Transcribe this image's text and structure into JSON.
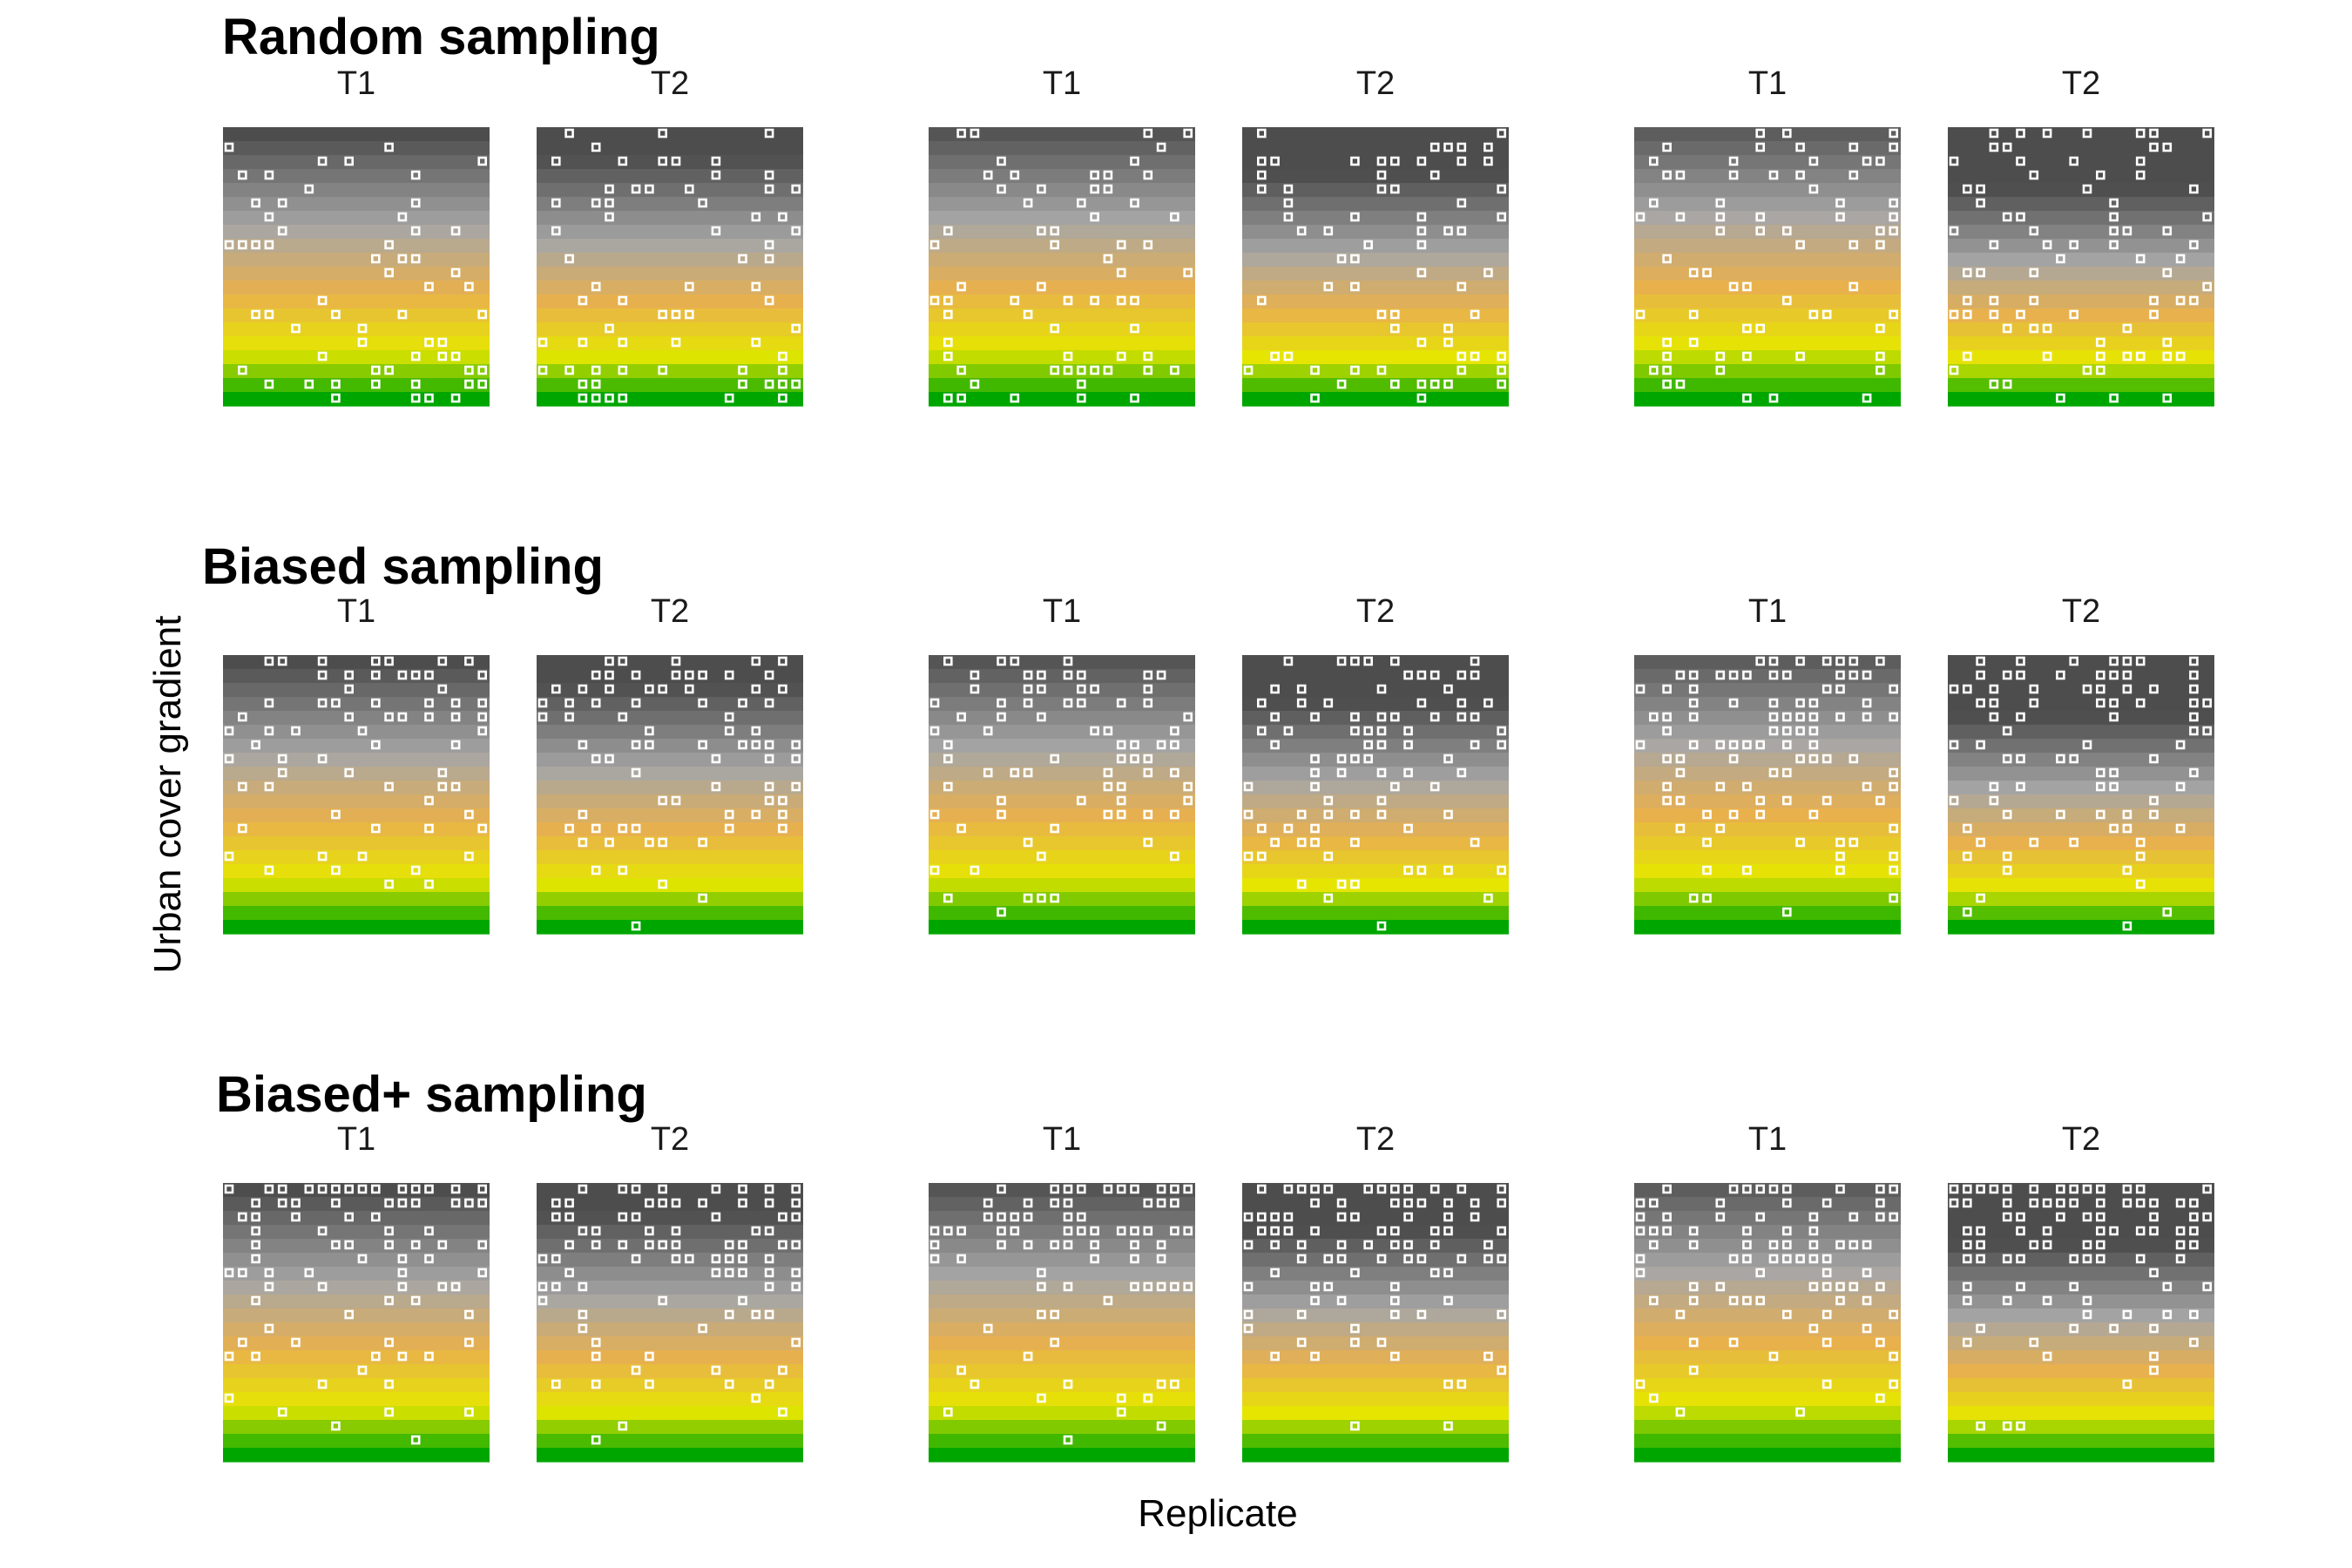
{
  "chart_data": {
    "type": "heatmap",
    "xlabel": "Replicate",
    "ylabel": "Urban cover gradient",
    "facet_labels": [
      "T1",
      "T2"
    ],
    "rows": [
      {
        "title": "Random sampling",
        "sampling": "random"
      },
      {
        "title": "Biased sampling",
        "sampling": "biased"
      },
      {
        "title": "Biased+ sampling",
        "sampling": "biased_plus"
      }
    ],
    "replicates": 3,
    "grid_cells": 20,
    "colors": {
      "urban_dark": "#4d4d4d",
      "urban_light": "#a6a6a6",
      "mid": "#e8b04e",
      "yellow": "#e6e600",
      "green": "#00a600",
      "point_stroke": "#ffffff"
    }
  }
}
